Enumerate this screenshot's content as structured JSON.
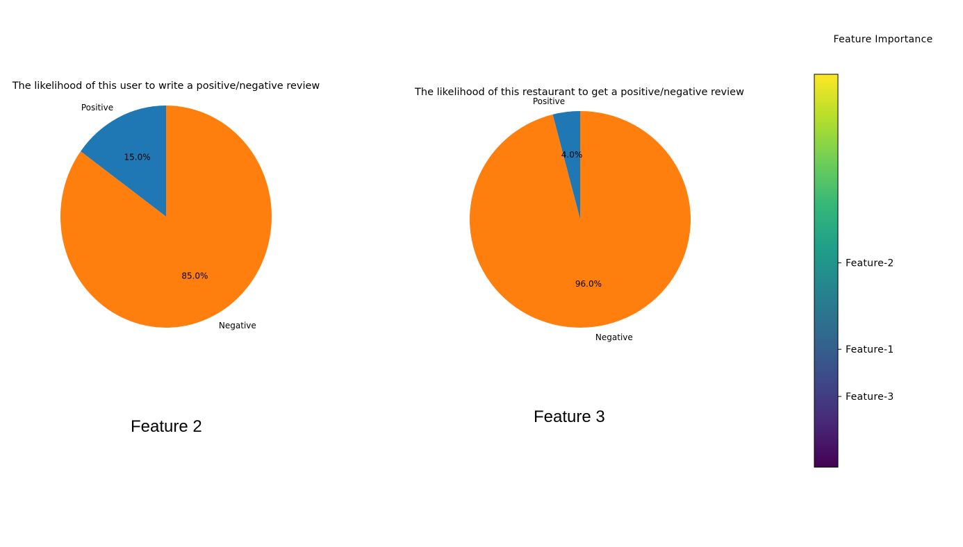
{
  "chart_data": [
    {
      "type": "pie",
      "title": "The likelihood of this user to write a positive/negative review",
      "labels": [
        "Positive",
        "Negative"
      ],
      "values": [
        15.0,
        85.0
      ],
      "autopct_labels": [
        "15.0%",
        "85.0%"
      ],
      "colors": [
        "#1f77b4",
        "#ff7f0e"
      ],
      "startangle": 90,
      "caption": "Feature 2"
    },
    {
      "type": "pie",
      "title": "The likelihood of this restaurant to get a positive/negative review",
      "labels": [
        "Positive",
        "Negative"
      ],
      "values": [
        4.0,
        96.0
      ],
      "autopct_labels": [
        "4.0%",
        "96.0%"
      ],
      "colors": [
        "#1f77b4",
        "#ff7f0e"
      ],
      "startangle": 90,
      "caption": "Feature 3"
    },
    {
      "type": "heatmap",
      "title": "Feature Importance",
      "colormap": "viridis",
      "colormap_stops": [
        "#440154",
        "#482878",
        "#3e4989",
        "#31688e",
        "#26828e",
        "#1f9e89",
        "#35b779",
        "#6ece58",
        "#b5de2b",
        "#fde725"
      ],
      "tick_labels": [
        "Feature-2",
        "Feature-1",
        "Feature-3"
      ],
      "tick_values": [
        0.52,
        0.3,
        0.18
      ]
    }
  ]
}
